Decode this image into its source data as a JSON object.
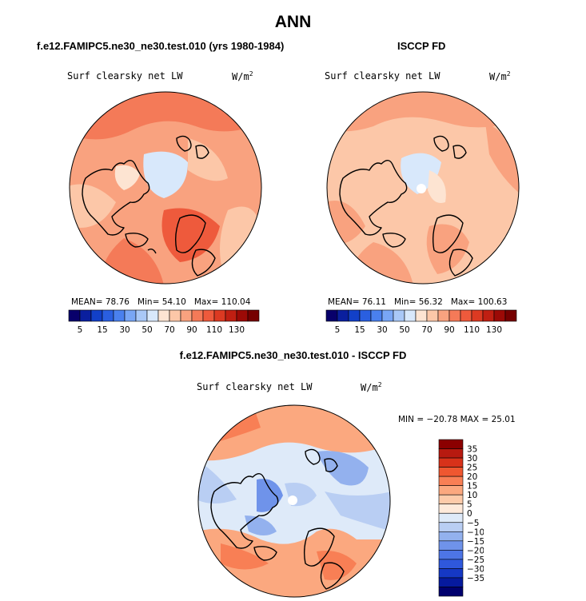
{
  "page_title": "ANN",
  "panels": [
    {
      "id": "model",
      "title": "f.e12.FAMIPC5.ne30_ne30.test.010 (yrs 1980-1984)",
      "variable": "Surf clearsky net LW",
      "units": "W/m",
      "units_sup": "2",
      "stats": {
        "mean_label": "MEAN=",
        "mean": "78.76",
        "min_label": "Min=",
        "min": "54.10",
        "max_label": "Max=",
        "max": "110.04"
      }
    },
    {
      "id": "obs",
      "title": "ISCCP FD",
      "variable": "Surf clearsky net LW",
      "units": "W/m",
      "units_sup": "2",
      "stats": {
        "mean_label": "MEAN=",
        "mean": "76.11",
        "min_label": "Min=",
        "min": "56.32",
        "max_label": "Max=",
        "max": "100.63"
      }
    }
  ],
  "diff_panel": {
    "title": "f.e12.FAMIPC5.ne30_ne30.test.010 - ISCCP FD",
    "variable": "Surf clearsky net LW",
    "units": "W/m",
    "units_sup": "2",
    "minmax": "MIN = −20.78 MAX =  25.01"
  },
  "abs_colorbar": {
    "colors": [
      "#08006b",
      "#0a1f9e",
      "#1240c8",
      "#2a5fe0",
      "#4a80ee",
      "#79a6f5",
      "#a9c8f7",
      "#d8e8fb",
      "#fde4d2",
      "#fcc7a8",
      "#f9a27f",
      "#f47a58",
      "#ee5a3c",
      "#dc3a22",
      "#c01f12",
      "#9c0a06",
      "#760000"
    ],
    "labels": [
      "5",
      "15",
      "30",
      "50",
      "70",
      "90",
      "110",
      "130"
    ]
  },
  "diff_colorbar": {
    "colors": [
      "#8b0000",
      "#b71a10",
      "#d8321a",
      "#ef5730",
      "#f87f55",
      "#fba87f",
      "#fdcbaa",
      "#feeadb",
      "#deeaf9",
      "#b9cef3",
      "#93b1ee",
      "#6f93ea",
      "#4d75e6",
      "#2f58dc",
      "#1538c4",
      "#061a9e",
      "#00006e"
    ],
    "labels": [
      "35",
      "30",
      "25",
      "20",
      "15",
      "10",
      "5",
      "0",
      "−5",
      "−10",
      "−15",
      "−20",
      "−25",
      "−30",
      "−35"
    ]
  },
  "chart_data": {
    "type": "heatmap",
    "projection": "polar stereographic (Northern Hemisphere)",
    "maps": [
      {
        "name": "f.e12.FAMIPC5.ne30_ne30.test.010 (yrs 1980-1984)",
        "mean": 78.76,
        "min": 54.1,
        "max": 110.04
      },
      {
        "name": "ISCCP FD",
        "mean": 76.11,
        "min": 56.32,
        "max": 100.63
      },
      {
        "name": "f.e12.FAMIPC5.ne30_ne30.test.010 - ISCCP FD",
        "min": -20.78,
        "max": 25.01
      }
    ],
    "abs_levels": [
      5,
      10,
      15,
      20,
      30,
      40,
      50,
      60,
      70,
      80,
      90,
      100,
      110,
      120,
      130,
      140
    ],
    "diff_levels": [
      -35,
      -30,
      -25,
      -20,
      -15,
      -10,
      -5,
      0,
      5,
      10,
      15,
      20,
      25,
      30,
      35
    ]
  }
}
